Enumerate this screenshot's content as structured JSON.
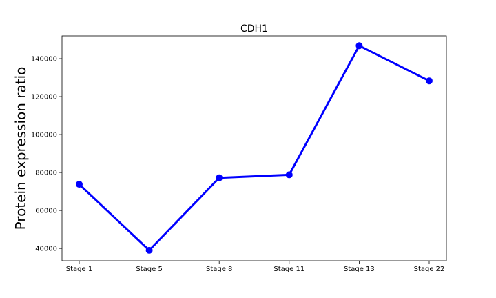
{
  "chart_data": {
    "type": "line",
    "title": "CDH1",
    "xlabel": "",
    "ylabel": "Protein expression ratio",
    "categories": [
      "Stage 1",
      "Stage 5",
      "Stage 8",
      "Stage 11",
      "Stage 13",
      "Stage 22"
    ],
    "series": [
      {
        "values": [
          73800,
          39000,
          77200,
          78800,
          146800,
          128300
        ],
        "color": "#0000ff",
        "marker": "circle"
      }
    ],
    "ylim": [
      33500,
      152000
    ],
    "yticks": [
      40000,
      60000,
      80000,
      100000,
      120000,
      140000
    ],
    "ytick_labels": [
      "40000",
      "60000",
      "80000",
      "100000",
      "120000",
      "140000"
    ],
    "grid": false,
    "legend": "none"
  }
}
